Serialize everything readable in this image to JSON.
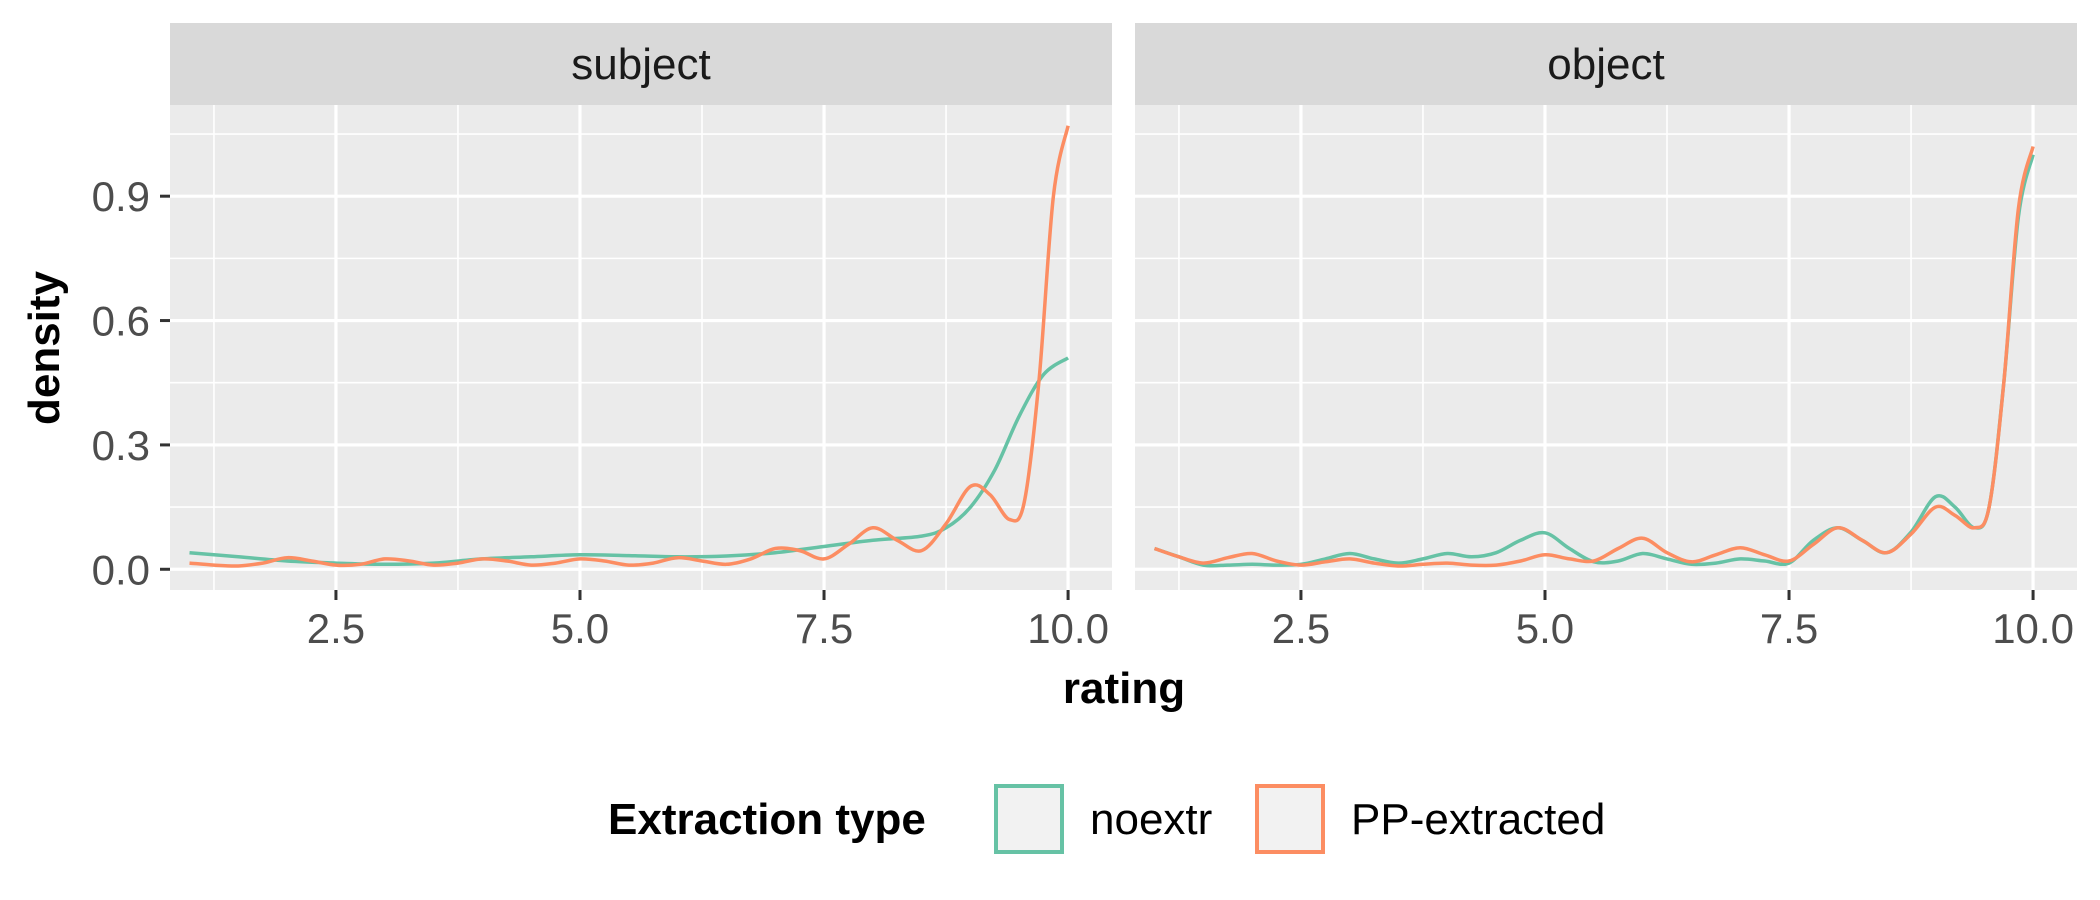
{
  "chart_data": {
    "type": "line",
    "xlabel": "rating",
    "ylabel": "density",
    "xlim": [
      0.8,
      10.45
    ],
    "ylim": [
      -0.05,
      1.12
    ],
    "x_ticks": [
      2.5,
      5.0,
      7.5,
      10.0
    ],
    "x_tick_labels": [
      "2.5",
      "5.0",
      "7.5",
      "10.0"
    ],
    "y_ticks": [
      0.0,
      0.3,
      0.6,
      0.9
    ],
    "y_tick_labels": [
      "0.0",
      "0.3",
      "0.6",
      "0.9"
    ],
    "grid": true,
    "legend": {
      "title": "Extraction type",
      "position": "bottom",
      "entries": [
        {
          "label": "noextr",
          "color": "#66c2a5"
        },
        {
          "label": "PP-extracted",
          "color": "#fc8d62"
        }
      ]
    },
    "panels": [
      {
        "strip": "subject",
        "series": [
          {
            "key": "noextr",
            "color": "#66c2a5",
            "x": [
              1.0,
              1.5,
              2.0,
              2.5,
              3.0,
              3.5,
              4.0,
              4.5,
              5.0,
              5.5,
              6.0,
              6.5,
              7.0,
              7.5,
              8.0,
              8.5,
              8.75,
              9.0,
              9.25,
              9.5,
              9.75,
              10.0
            ],
            "y": [
              0.04,
              0.03,
              0.02,
              0.015,
              0.012,
              0.015,
              0.025,
              0.03,
              0.035,
              0.033,
              0.03,
              0.032,
              0.04,
              0.055,
              0.07,
              0.08,
              0.1,
              0.15,
              0.24,
              0.37,
              0.47,
              0.51
            ]
          },
          {
            "key": "PP-extracted",
            "color": "#fc8d62",
            "x": [
              1.0,
              1.25,
              1.5,
              1.75,
              2.0,
              2.25,
              2.5,
              2.75,
              3.0,
              3.25,
              3.5,
              3.75,
              4.0,
              4.25,
              4.5,
              4.75,
              5.0,
              5.25,
              5.5,
              5.75,
              6.0,
              6.25,
              6.5,
              6.75,
              7.0,
              7.25,
              7.5,
              7.75,
              8.0,
              8.25,
              8.5,
              8.75,
              9.0,
              9.2,
              9.4,
              9.55,
              9.7,
              9.85,
              10.0
            ],
            "y": [
              0.015,
              0.01,
              0.008,
              0.015,
              0.028,
              0.02,
              0.01,
              0.012,
              0.025,
              0.02,
              0.01,
              0.015,
              0.025,
              0.02,
              0.01,
              0.015,
              0.025,
              0.02,
              0.01,
              0.015,
              0.028,
              0.02,
              0.012,
              0.025,
              0.05,
              0.045,
              0.025,
              0.06,
              0.1,
              0.07,
              0.045,
              0.11,
              0.2,
              0.18,
              0.12,
              0.16,
              0.45,
              0.9,
              1.07
            ]
          }
        ]
      },
      {
        "strip": "object",
        "series": [
          {
            "key": "noextr",
            "color": "#66c2a5",
            "x": [
              1.0,
              1.25,
              1.5,
              1.75,
              2.0,
              2.25,
              2.5,
              2.75,
              3.0,
              3.25,
              3.5,
              3.75,
              4.0,
              4.25,
              4.5,
              4.75,
              5.0,
              5.25,
              5.5,
              5.75,
              6.0,
              6.25,
              6.5,
              6.75,
              7.0,
              7.25,
              7.5,
              7.75,
              8.0,
              8.25,
              8.5,
              8.75,
              9.0,
              9.2,
              9.4,
              9.55,
              9.7,
              9.85,
              10.0
            ],
            "y": [
              0.05,
              0.03,
              0.01,
              0.01,
              0.012,
              0.01,
              0.012,
              0.025,
              0.038,
              0.025,
              0.015,
              0.025,
              0.038,
              0.03,
              0.04,
              0.07,
              0.088,
              0.05,
              0.018,
              0.02,
              0.038,
              0.025,
              0.012,
              0.015,
              0.025,
              0.02,
              0.015,
              0.07,
              0.1,
              0.07,
              0.04,
              0.09,
              0.175,
              0.15,
              0.1,
              0.15,
              0.45,
              0.85,
              1.0
            ]
          },
          {
            "key": "PP-extracted",
            "color": "#fc8d62",
            "x": [
              1.0,
              1.25,
              1.5,
              1.75,
              2.0,
              2.25,
              2.5,
              2.75,
              3.0,
              3.25,
              3.5,
              3.75,
              4.0,
              4.25,
              4.5,
              4.75,
              5.0,
              5.25,
              5.5,
              5.75,
              6.0,
              6.25,
              6.5,
              6.75,
              7.0,
              7.25,
              7.5,
              7.75,
              8.0,
              8.25,
              8.5,
              8.75,
              9.0,
              9.2,
              9.4,
              9.55,
              9.7,
              9.85,
              10.0
            ],
            "y": [
              0.05,
              0.03,
              0.015,
              0.028,
              0.038,
              0.02,
              0.01,
              0.018,
              0.025,
              0.015,
              0.008,
              0.012,
              0.015,
              0.01,
              0.01,
              0.02,
              0.035,
              0.025,
              0.02,
              0.05,
              0.075,
              0.04,
              0.018,
              0.035,
              0.052,
              0.035,
              0.02,
              0.06,
              0.1,
              0.07,
              0.04,
              0.085,
              0.15,
              0.13,
              0.1,
              0.15,
              0.45,
              0.87,
              1.02
            ]
          }
        ]
      }
    ]
  }
}
